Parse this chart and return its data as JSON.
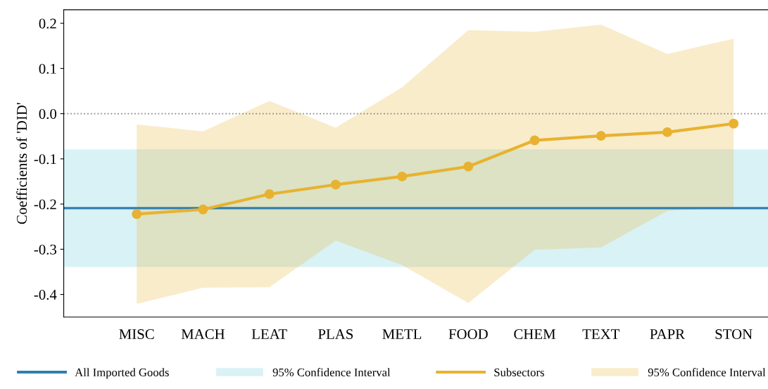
{
  "chart_data": {
    "type": "line",
    "ylabel": "Coefficients of 'DID'",
    "categories": [
      "MISC",
      "MACH",
      "LEAT",
      "PLAS",
      "METL",
      "FOOD",
      "CHEM",
      "TEXT",
      "PAPR",
      "STON"
    ],
    "series": [
      {
        "name": "Subsectors",
        "color": "#e8b230",
        "values": [
          -0.222,
          -0.212,
          -0.178,
          -0.157,
          -0.139,
          -0.117,
          -0.059,
          -0.049,
          -0.041,
          -0.022
        ],
        "lower": [
          -0.421,
          -0.385,
          -0.384,
          -0.281,
          -0.335,
          -0.419,
          -0.301,
          -0.296,
          -0.215,
          -0.207
        ],
        "upper": [
          -0.024,
          -0.039,
          0.028,
          -0.031,
          0.058,
          0.185,
          0.181,
          0.197,
          0.132,
          0.166
        ]
      }
    ],
    "ref_lines": [
      {
        "axis": "y",
        "value": -0.209,
        "label": "All Imported Goods",
        "color": "#2f7fb0",
        "line_style": "solid"
      },
      {
        "axis": "y",
        "value": 0,
        "color": "#888888",
        "line_style": "dotted"
      }
    ],
    "bands": [
      {
        "axis": "y",
        "from": -0.339,
        "to": -0.079,
        "label": "95% Confidence Interval",
        "color": "#bfe9ee"
      }
    ],
    "ylim": [
      -0.45,
      0.23
    ],
    "yticks": [
      0.2,
      0.1,
      {
        "value": 0,
        "label": "0.0"
      },
      -0.1,
      -0.2,
      -0.3,
      -0.4
    ],
    "annotations": [
      "95% Confidence Interval"
    ],
    "marker": "circle",
    "line_style": "solid",
    "grid": false,
    "legend": "bottom"
  }
}
